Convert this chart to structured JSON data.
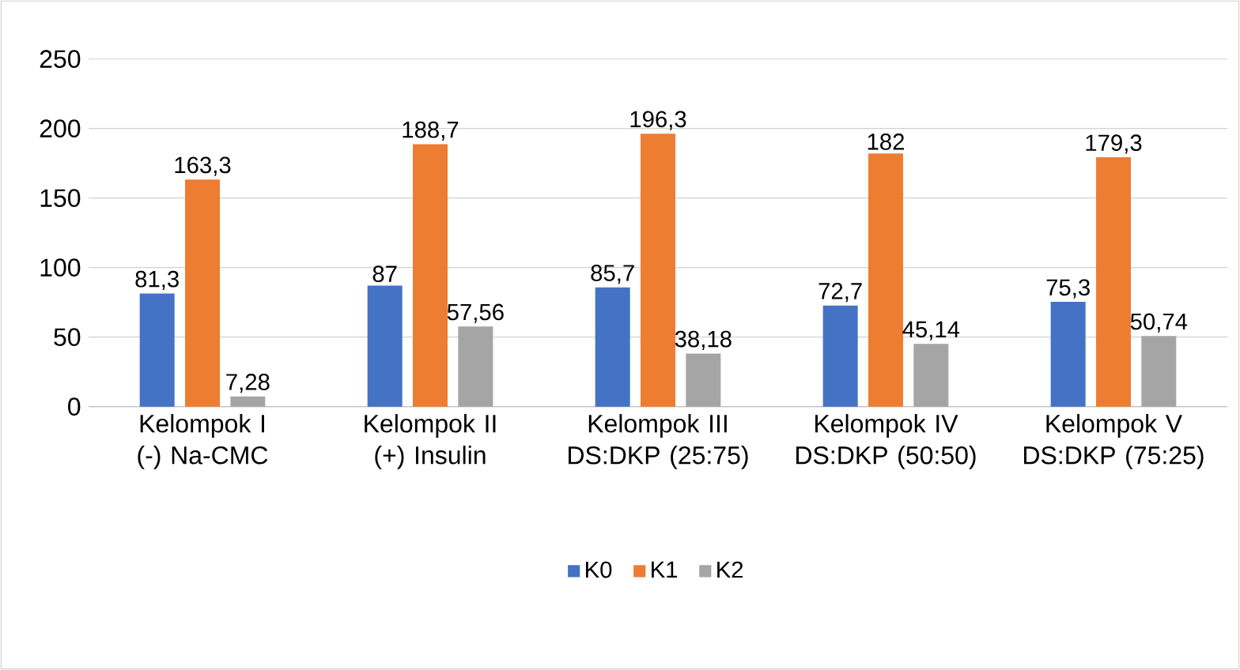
{
  "chart_data": {
    "type": "bar",
    "categories": [
      "Kelompok I (-) Na-CMC",
      "Kelompok II (+) Insulin",
      "Kelompok III DS:DKP (25:75)",
      "Kelompok IV DS:DKP (50:50)",
      "Kelompok V DS:DKP (75:25)"
    ],
    "series": [
      {
        "name": "K0",
        "color": "#4472c4",
        "values": [
          81.3,
          87,
          85.7,
          72.7,
          75.3
        ],
        "value_labels": [
          "81,3",
          "87",
          "85,7",
          "72,7",
          "75,3"
        ]
      },
      {
        "name": "K1",
        "color": "#ed7d31",
        "values": [
          163.3,
          188.7,
          196.3,
          182,
          179.3
        ],
        "value_labels": [
          "163,3",
          "188,7",
          "196,3",
          "182",
          "179,3"
        ]
      },
      {
        "name": "K2",
        "color": "#a5a5a5",
        "values": [
          7.28,
          57.56,
          38.18,
          45.14,
          50.74
        ],
        "value_labels": [
          "7,28",
          "57,56",
          "38,18",
          "45,14",
          "50,74"
        ]
      }
    ],
    "ylim": [
      0,
      250
    ],
    "yticks": [
      0,
      50,
      100,
      150,
      200,
      250
    ],
    "grid": "y",
    "legend": "bottom"
  }
}
